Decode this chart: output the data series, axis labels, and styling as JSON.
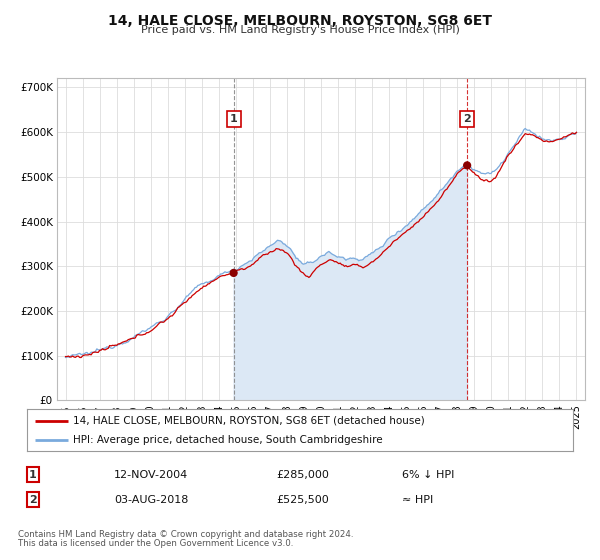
{
  "title": "14, HALE CLOSE, MELBOURN, ROYSTON, SG8 6ET",
  "subtitle": "Price paid vs. HM Land Registry's House Price Index (HPI)",
  "background_color": "#ffffff",
  "plot_bg_color": "#ffffff",
  "grid_color": "#dddddd",
  "red_line_color": "#cc0000",
  "blue_line_color": "#7aaadd",
  "blue_fill_color": "#dce8f5",
  "ylim": [
    0,
    720000
  ],
  "yticks": [
    0,
    100000,
    200000,
    300000,
    400000,
    500000,
    600000,
    700000
  ],
  "ytick_labels": [
    "£0",
    "£100K",
    "£200K",
    "£300K",
    "£400K",
    "£500K",
    "£600K",
    "£700K"
  ],
  "xlim_start": 1994.5,
  "xlim_end": 2025.5,
  "xtick_years": [
    1995,
    1996,
    1997,
    1998,
    1999,
    2000,
    2001,
    2002,
    2003,
    2004,
    2005,
    2006,
    2007,
    2008,
    2009,
    2010,
    2011,
    2012,
    2013,
    2014,
    2015,
    2016,
    2017,
    2018,
    2019,
    2020,
    2021,
    2022,
    2023,
    2024,
    2025
  ],
  "marker1_x": 2004.87,
  "marker1_y": 285000,
  "marker1_label": "1",
  "marker2_x": 2018.58,
  "marker2_y": 525500,
  "marker2_label": "2",
  "legend_line1": "14, HALE CLOSE, MELBOURN, ROYSTON, SG8 6ET (detached house)",
  "legend_line2": "HPI: Average price, detached house, South Cambridgeshire",
  "annotation1_num": "1",
  "annotation1_date": "12-NOV-2004",
  "annotation1_price": "£285,000",
  "annotation1_rel": "6% ↓ HPI",
  "annotation2_num": "2",
  "annotation2_date": "03-AUG-2018",
  "annotation2_price": "£525,500",
  "annotation2_rel": "≈ HPI",
  "footer1": "Contains HM Land Registry data © Crown copyright and database right 2024.",
  "footer2": "This data is licensed under the Open Government Licence v3.0."
}
